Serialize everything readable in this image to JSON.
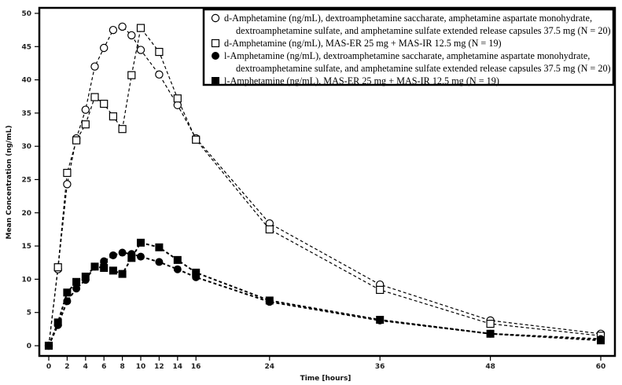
{
  "chart_data": {
    "type": "line",
    "title": "",
    "xlabel": "Time [hours]",
    "ylabel": "Mean Concentration (ng/mL)",
    "xlim": [
      0,
      60
    ],
    "ylim": [
      0,
      50
    ],
    "x_ticks": [
      0,
      2,
      4,
      6,
      8,
      10,
      12,
      14,
      16,
      24,
      36,
      48,
      60
    ],
    "y_ticks": [
      0,
      5,
      10,
      15,
      20,
      25,
      30,
      35,
      40,
      45,
      50
    ],
    "grid": false,
    "legend_position": "top-right",
    "series": [
      {
        "name": "d-Amphetamine (ng/mL), dextroamphetamine saccharate, amphetamine aspartate monohydrate, dextroamphetamine sulfate, and amphetamine sulfate extended release capsules 37.5 mg (N = 20)",
        "legend_lines": [
          "d-Amphetamine (ng/mL), dextroamphetamine saccharate, amphetamine aspartate monohydrate,",
          "dextroamphetamine sulfate, and amphetamine sulfate extended release capsules 37.5 mg (N = 20)"
        ],
        "marker": "open-circle",
        "x": [
          0,
          1,
          2,
          3,
          4,
          5,
          6,
          7,
          8,
          9,
          10,
          12,
          14,
          16,
          24,
          36,
          48,
          60
        ],
        "y": [
          0,
          11.5,
          24.3,
          31.2,
          35.5,
          42.0,
          44.8,
          47.5,
          48.0,
          46.7,
          44.5,
          40.8,
          36.2,
          31.2,
          18.4,
          9.2,
          3.8,
          1.8
        ]
      },
      {
        "name": "d-Amphetamine (ng/mL), MAS-ER 25 mg + MAS-IR 12.5 mg (N = 19)",
        "legend_lines": [
          "d-Amphetamine (ng/mL), MAS-ER 25 mg + MAS-IR 12.5 mg (N = 19)"
        ],
        "marker": "open-square",
        "x": [
          0,
          1,
          2,
          3,
          4,
          5,
          6,
          7,
          8,
          9,
          10,
          12,
          14,
          16,
          24,
          36,
          48,
          60
        ],
        "y": [
          0,
          11.8,
          26.0,
          30.9,
          33.3,
          37.4,
          36.4,
          34.5,
          32.6,
          40.7,
          47.8,
          44.2,
          37.2,
          31.0,
          17.5,
          8.4,
          3.3,
          1.5
        ]
      },
      {
        "name": "l-Amphetamine (ng/mL), dextroamphetamine saccharate, amphetamine aspartate monohydrate, dextroamphetamine sulfate, and amphetamine sulfate extended release capsules 37.5 mg (N = 20)",
        "legend_lines": [
          "l-Amphetamine (ng/mL), dextroamphetamine saccharate, amphetamine aspartate monohydrate,",
          "dextroamphetamine sulfate, and amphetamine sulfate extended release capsules 37.5 mg (N = 20)"
        ],
        "marker": "filled-circle",
        "x": [
          0,
          1,
          2,
          3,
          4,
          5,
          6,
          7,
          8,
          9,
          10,
          12,
          14,
          16,
          24,
          36,
          48,
          60
        ],
        "y": [
          0,
          3.1,
          6.7,
          8.6,
          9.9,
          11.9,
          12.7,
          13.6,
          14.0,
          13.8,
          13.4,
          12.6,
          11.5,
          10.3,
          6.6,
          3.8,
          1.8,
          1.0
        ]
      },
      {
        "name": "l-Amphetamine (ng/mL), MAS-ER 25 mg + MAS-IR 12.5 mg (N = 19)",
        "legend_lines": [
          "l-Amphetamine (ng/mL), MAS-ER 25 mg + MAS-IR 12.5 mg (N = 19)"
        ],
        "marker": "filled-square",
        "x": [
          0,
          1,
          2,
          3,
          4,
          5,
          6,
          7,
          8,
          9,
          10,
          12,
          14,
          16,
          24,
          36,
          48,
          60
        ],
        "y": [
          0,
          3.5,
          8.0,
          9.6,
          10.4,
          11.9,
          11.7,
          11.3,
          10.8,
          13.2,
          15.5,
          14.8,
          12.9,
          11.0,
          6.8,
          3.9,
          1.8,
          0.8
        ]
      }
    ]
  },
  "colors": {
    "ink": "#000000",
    "background": "#ffffff"
  }
}
